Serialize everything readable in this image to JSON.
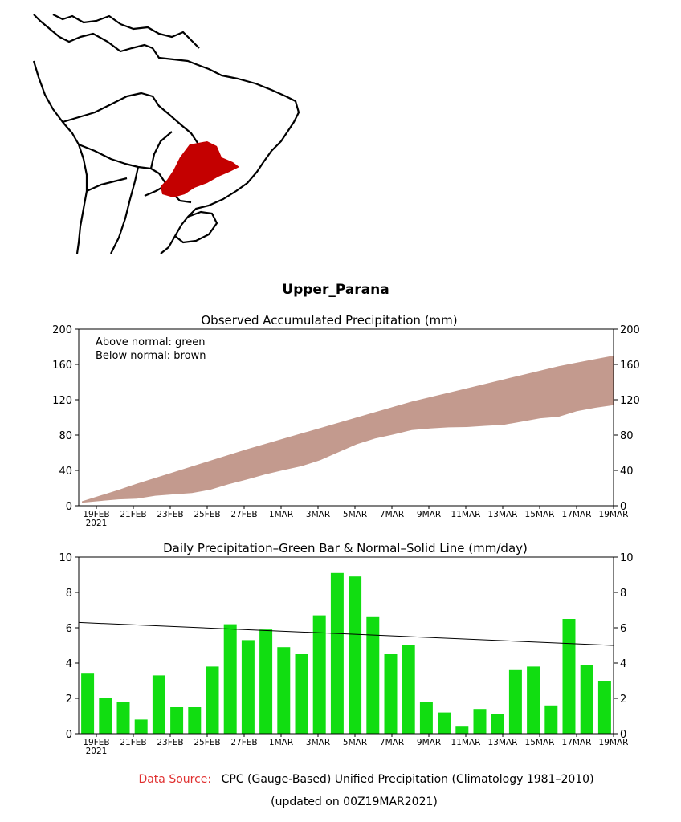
{
  "region_title": "Upper_Parana",
  "colors": {
    "accumulated_band": "#c39a8e",
    "daily_bars": "#11dd11",
    "normal_line": "#000000",
    "highlight_region": "#c40000",
    "source_label": "#e03030"
  },
  "chart_data": [
    {
      "type": "area",
      "title": "Observed Accumulated Precipitation (mm)",
      "legend_lines": [
        "Above normal: green",
        "Below normal: brown"
      ],
      "ylim": [
        0,
        200
      ],
      "yticks": [
        0,
        40,
        80,
        120,
        160,
        200
      ],
      "x_tick_labels": [
        "19FEB",
        "21FEB",
        "23FEB",
        "25FEB",
        "27FEB",
        "1MAR",
        "3MAR",
        "5MAR",
        "7MAR",
        "9MAR",
        "11MAR",
        "13MAR",
        "15MAR",
        "17MAR",
        "19MAR"
      ],
      "x_year_label": "2021",
      "series": [
        {
          "name": "Normal",
          "values": [
            5,
            11.5,
            18,
            25,
            31.5,
            38,
            44.5,
            51,
            57.5,
            64,
            70,
            76,
            82,
            88,
            94,
            100,
            106,
            112,
            118,
            123,
            128,
            133,
            138,
            143,
            148,
            153,
            158,
            162,
            166,
            170
          ]
        },
        {
          "name": "Observed",
          "values": [
            3.4,
            5.4,
            7.2,
            8,
            11.3,
            12.8,
            14.3,
            18.1,
            24.3,
            29.6,
            35.5,
            40.4,
            44.9,
            51.6,
            60.7,
            69.6,
            76.2,
            80.7,
            85.7,
            87.5,
            88.7,
            89.1,
            90.5,
            91.6,
            95.2,
            99,
            100.6,
            107,
            110.9,
            113.9
          ]
        }
      ]
    },
    {
      "type": "bar",
      "title": "Daily Precipitation–Green Bar & Normal–Solid Line (mm/day)",
      "ylim": [
        0,
        10
      ],
      "yticks": [
        0,
        2,
        4,
        6,
        8,
        10
      ],
      "x_tick_labels": [
        "19FEB",
        "21FEB",
        "23FEB",
        "25FEB",
        "27FEB",
        "1MAR",
        "3MAR",
        "5MAR",
        "7MAR",
        "9MAR",
        "11MAR",
        "13MAR",
        "15MAR",
        "17MAR",
        "19MAR"
      ],
      "x_year_label": "2021",
      "values": [
        3.4,
        2.0,
        1.8,
        0.8,
        3.3,
        1.5,
        1.5,
        3.8,
        6.2,
        5.3,
        5.9,
        4.9,
        4.5,
        6.7,
        9.1,
        8.9,
        6.6,
        4.5,
        5.0,
        1.8,
        1.2,
        0.4,
        1.4,
        1.1,
        3.6,
        3.8,
        1.6,
        6.5,
        3.9,
        3.0
      ],
      "normal_line": {
        "start": 6.3,
        "end": 5.0
      }
    }
  ],
  "footer": {
    "source_label": "Data Source:",
    "source_text": "CPC (Gauge-Based) Unified Precipitation (Climatology 1981–2010)",
    "updated_text": "(updated on 00Z19MAR2021)"
  }
}
